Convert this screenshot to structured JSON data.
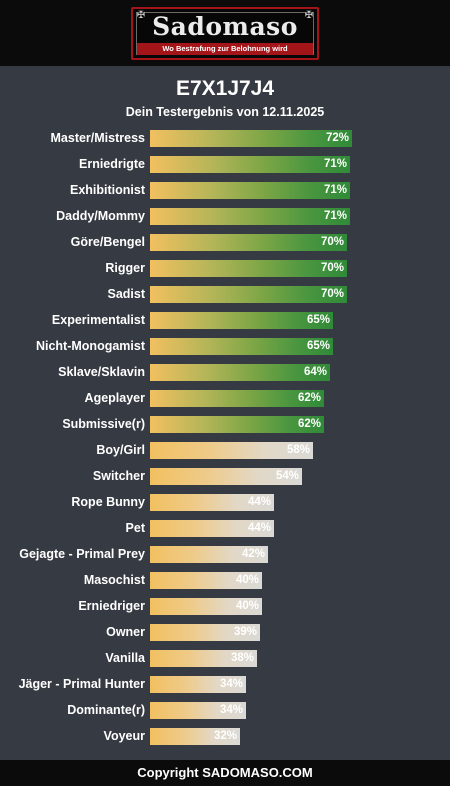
{
  "header": {
    "logo_title": "Sadomaso",
    "logo_subtitle": "Wo Bestrafung zur Belohnung wird"
  },
  "result_id": "E7X1J7J4",
  "subtitle": "Dein Testergebnis von 12.11.2025",
  "colors": {
    "background": "#363a42",
    "header": "#0b0b0b",
    "brand_red": "#a4151a",
    "bar_start": "#f2c060",
    "bar_high_end": "#2f8a37",
    "bar_low_end": "#dad9d6"
  },
  "chart_data": {
    "type": "bar",
    "orientation": "horizontal",
    "categories": [
      "Master/Mistress",
      "Erniedrigte",
      "Exhibitionist",
      "Daddy/Mommy",
      "Göre/Bengel",
      "Rigger",
      "Sadist",
      "Experimentalist",
      "Nicht-Monogamist",
      "Sklave/Sklavin",
      "Ageplayer",
      "Submissive(r)",
      "Boy/Girl",
      "Switcher",
      "Rope Bunny",
      "Pet",
      "Gejagte - Primal Prey",
      "Masochist",
      "Erniedriger",
      "Owner",
      "Vanilla",
      "Jäger - Primal Hunter",
      "Dominante(r)",
      "Voyeur"
    ],
    "values": [
      72,
      71,
      71,
      71,
      70,
      70,
      70,
      65,
      65,
      64,
      62,
      62,
      58,
      54,
      44,
      44,
      42,
      40,
      40,
      39,
      38,
      34,
      34,
      32
    ],
    "value_labels": [
      "72%",
      "71%",
      "71%",
      "71%",
      "70%",
      "70%",
      "70%",
      "65%",
      "65%",
      "64%",
      "62%",
      "62%",
      "58%",
      "54%",
      "44%",
      "44%",
      "42%",
      "40%",
      "40%",
      "39%",
      "38%",
      "34%",
      "34%",
      "32%"
    ],
    "unit": "%",
    "xlim": [
      0,
      100
    ]
  },
  "footer": "Copyright SADOMASO.COM"
}
